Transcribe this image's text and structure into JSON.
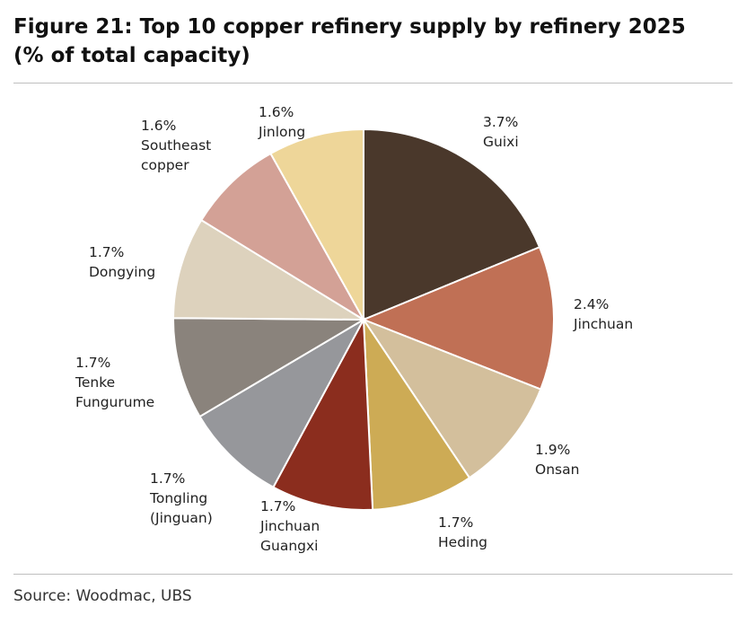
{
  "figure": {
    "title_line1": "Figure 21: Top 10 copper refinery supply by refinery 2025",
    "title_line2": "(% of total capacity)",
    "source": "Source: Woodmac, UBS"
  },
  "chart_data": {
    "type": "pie",
    "title": "Figure 21: Top 10 copper refinery supply by refinery 2025 (% of total capacity)",
    "slices": [
      {
        "name": "Guixi",
        "value": 3.7,
        "value_label": "3.7%",
        "label_lines": [
          "Guixi"
        ],
        "color": "#4a382b"
      },
      {
        "name": "Jinchuan",
        "value": 2.4,
        "value_label": "2.4%",
        "label_lines": [
          "Jinchuan"
        ],
        "color": "#c07055"
      },
      {
        "name": "Onsan",
        "value": 1.9,
        "value_label": "1.9%",
        "label_lines": [
          "Onsan"
        ],
        "color": "#d3bf9c"
      },
      {
        "name": "Heding",
        "value": 1.7,
        "value_label": "1.7%",
        "label_lines": [
          "Heding"
        ],
        "color": "#cdab55"
      },
      {
        "name": "Jinchuan Guangxi",
        "value": 1.7,
        "value_label": "1.7%",
        "label_lines": [
          "Jinchuan",
          "Guangxi"
        ],
        "color": "#8b2d1e"
      },
      {
        "name": "Tongling (Jinguan)",
        "value": 1.7,
        "value_label": "1.7%",
        "label_lines": [
          "Tongling",
          "(Jinguan)"
        ],
        "color": "#96979b"
      },
      {
        "name": "Tenke Fungurume",
        "value": 1.7,
        "value_label": "1.7%",
        "label_lines": [
          "Tenke",
          "Fungurume"
        ],
        "color": "#8a837c"
      },
      {
        "name": "Dongying",
        "value": 1.7,
        "value_label": "1.7%",
        "label_lines": [
          "Dongying"
        ],
        "color": "#ddd2bd"
      },
      {
        "name": "Southeast copper",
        "value": 1.6,
        "value_label": "1.6%",
        "label_lines": [
          "Southeast",
          "copper"
        ],
        "color": "#d3a196"
      },
      {
        "name": "Jinlong",
        "value": 1.6,
        "value_label": "1.6%",
        "label_lines": [
          "Jinlong"
        ],
        "color": "#eed699"
      }
    ],
    "start_angle": "12 o'clock",
    "direction": "clockwise",
    "legend": "none"
  }
}
